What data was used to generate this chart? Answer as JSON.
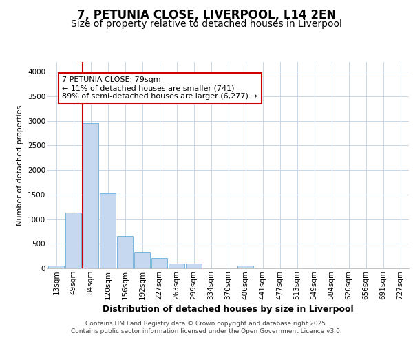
{
  "title1": "7, PETUNIA CLOSE, LIVERPOOL, L14 2EN",
  "title2": "Size of property relative to detached houses in Liverpool",
  "xlabel": "Distribution of detached houses by size in Liverpool",
  "ylabel": "Number of detached properties",
  "categories": [
    "13sqm",
    "49sqm",
    "84sqm",
    "120sqm",
    "156sqm",
    "192sqm",
    "227sqm",
    "263sqm",
    "299sqm",
    "334sqm",
    "370sqm",
    "406sqm",
    "441sqm",
    "477sqm",
    "513sqm",
    "549sqm",
    "584sqm",
    "620sqm",
    "656sqm",
    "691sqm",
    "727sqm"
  ],
  "values": [
    55,
    1130,
    2960,
    1530,
    660,
    320,
    210,
    100,
    100,
    0,
    0,
    55,
    0,
    0,
    0,
    0,
    0,
    0,
    0,
    0,
    0
  ],
  "bar_color": "#c5d8ef",
  "bar_edge_color": "#6aaed6",
  "highlight_bar_index": 2,
  "highlight_color": "#cc0000",
  "annotation_text": "7 PETUNIA CLOSE: 79sqm\n← 11% of detached houses are smaller (741)\n89% of semi-detached houses are larger (6,277) →",
  "annotation_box_color": "#cc0000",
  "ylim": [
    0,
    4200
  ],
  "yticks": [
    0,
    500,
    1000,
    1500,
    2000,
    2500,
    3000,
    3500,
    4000
  ],
  "background_color": "#ffffff",
  "plot_bg_color": "#ffffff",
  "grid_color": "#c8d8e8",
  "footer_line1": "Contains HM Land Registry data © Crown copyright and database right 2025.",
  "footer_line2": "Contains public sector information licensed under the Open Government Licence v3.0.",
  "title1_fontsize": 12,
  "title2_fontsize": 10,
  "xlabel_fontsize": 9,
  "ylabel_fontsize": 8,
  "tick_fontsize": 7.5,
  "annotation_fontsize": 8,
  "footer_fontsize": 6.5
}
